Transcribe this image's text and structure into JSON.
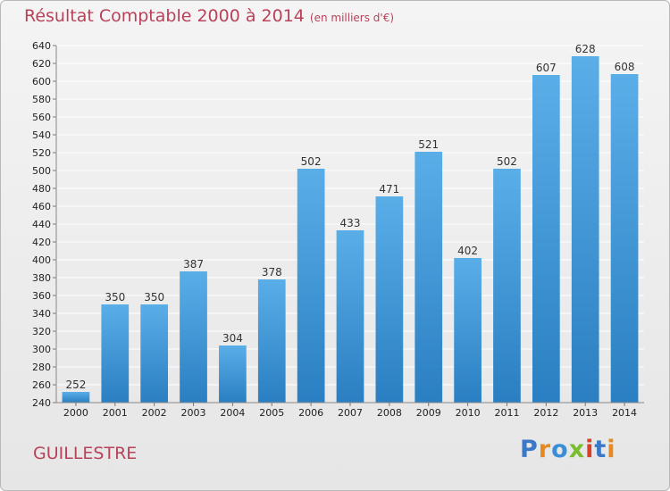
{
  "header": {
    "title": "Résultat Comptable 2000 à 2014",
    "subtitle": "(en milliers d'€)"
  },
  "footer": {
    "city": "GUILLESTRE",
    "logo": {
      "text": "Proxiti",
      "letters": [
        "P",
        "r",
        "o",
        "x",
        "i",
        "t",
        "i"
      ]
    }
  },
  "colors": {
    "title": "#b8425a",
    "bar_top": "#5aaee8",
    "bar_bottom": "#2a7fc2",
    "grid": "#ffffff"
  },
  "chart_data": {
    "type": "bar",
    "title": "Résultat Comptable 2000 à 2014",
    "subtitle": "(en milliers d'€)",
    "categories": [
      "2000",
      "2001",
      "2002",
      "2003",
      "2004",
      "2005",
      "2006",
      "2007",
      "2008",
      "2009",
      "2010",
      "2011",
      "2012",
      "2013",
      "2014"
    ],
    "values": [
      252,
      350,
      350,
      387,
      304,
      378,
      502,
      433,
      471,
      521,
      402,
      502,
      607,
      628,
      608
    ],
    "ylim": [
      240,
      640
    ],
    "ytick_step": 20,
    "grid": true,
    "data_labels": true,
    "legend": "none"
  }
}
